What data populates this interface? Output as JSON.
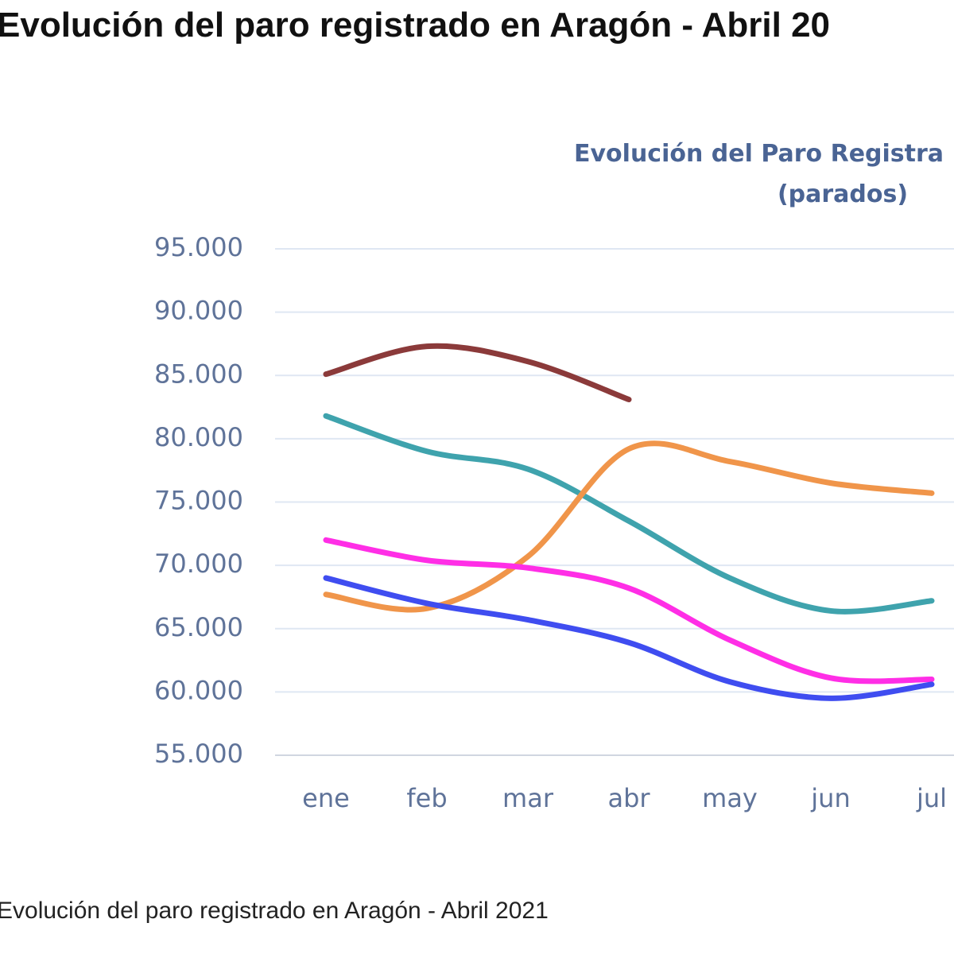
{
  "page_title": "Evolución del paro registrado en Aragón - Abril 20",
  "caption": "Evolución del paro registrado en Aragón - Abril 2021",
  "chart_data": {
    "type": "line",
    "title": "Evolución del Paro Registra",
    "subtitle": "(parados)",
    "categories": [
      "ene",
      "feb",
      "mar",
      "abr",
      "may",
      "jun",
      "jul"
    ],
    "ylim": [
      55000,
      95000
    ],
    "yticks": [
      {
        "value": 55000,
        "label": "55.000"
      },
      {
        "value": 60000,
        "label": "60.000"
      },
      {
        "value": 65000,
        "label": "65.000"
      },
      {
        "value": 70000,
        "label": "70.000"
      },
      {
        "value": 75000,
        "label": "75.000"
      },
      {
        "value": 80000,
        "label": "80.000"
      },
      {
        "value": 85000,
        "label": "85.000"
      },
      {
        "value": 90000,
        "label": "90.000"
      },
      {
        "value": 95000,
        "label": "95.000"
      }
    ],
    "grid": true,
    "series": [
      {
        "color": "#8b3a3a",
        "values": [
          85100,
          87300,
          86100,
          83100,
          null,
          null,
          null
        ]
      },
      {
        "color": "#3fa3ad",
        "values": [
          81800,
          79000,
          77600,
          73500,
          69000,
          66400,
          67200
        ]
      },
      {
        "color": "#f0954a",
        "values": [
          67700,
          66600,
          70700,
          79200,
          78200,
          76500,
          75700
        ]
      },
      {
        "color": "#ff2ee6",
        "values": [
          72000,
          70400,
          69800,
          68200,
          64100,
          61100,
          61000
        ]
      },
      {
        "color": "#3f4df0",
        "values": [
          69000,
          67000,
          65700,
          63900,
          60800,
          59500,
          60600
        ]
      }
    ]
  }
}
